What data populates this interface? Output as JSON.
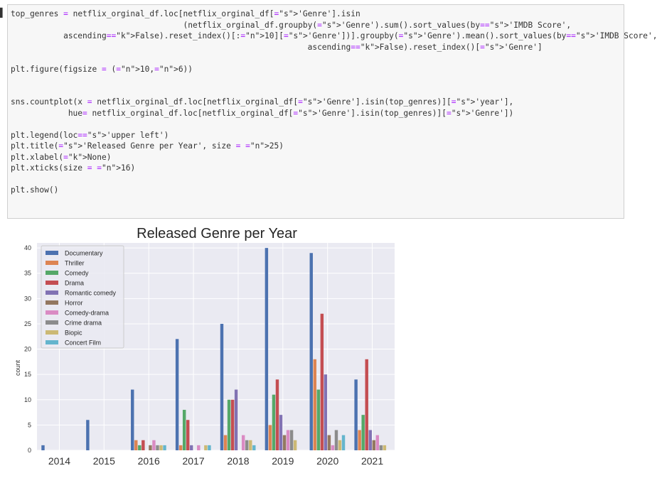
{
  "code_cell": {
    "lines": [
      "top_genres = netflix_orginal_df.loc[netflix_orginal_df['Genre'].isin",
      "                                    (netflix_orginal_df.groupby('Genre').sum().sort_values(by='IMDB Score',",
      "           ascending=False).reset_index()[:10]['Genre'])].groupby('Genre').mean().sort_values(by='IMDB Score',",
      "                                                              ascending=False).reset_index()['Genre']",
      "",
      "plt.figure(figsize = (10,6))",
      "",
      "",
      "sns.countplot(x = netflix_orginal_df.loc[netflix_orginal_df['Genre'].isin(top_genres)]['year'],",
      "            hue= netflix_orginal_df.loc[netflix_orginal_df['Genre'].isin(top_genres)]['Genre'])",
      "",
      "plt.legend(loc='upper left')",
      "plt.title('Released Genre per Year', size = 25)",
      "plt.xlabel(None)",
      "plt.xticks(size = 16)",
      "",
      "plt.show()"
    ]
  },
  "chart_data": {
    "type": "bar",
    "title": "Released Genre per Year",
    "xlabel": "",
    "ylabel": "count",
    "ylim": [
      0,
      41
    ],
    "yticks": [
      0,
      5,
      10,
      15,
      20,
      25,
      30,
      35,
      40
    ],
    "grid": true,
    "legend_position": "upper-left",
    "categories": [
      "2014",
      "2015",
      "2016",
      "2017",
      "2018",
      "2019",
      "2020",
      "2021"
    ],
    "series": [
      {
        "name": "Documentary",
        "color": "#4c72b0",
        "values": [
          1,
          6,
          12,
          22,
          25,
          40,
          39,
          14
        ]
      },
      {
        "name": "Thriller",
        "color": "#dd8452",
        "values": [
          0,
          0,
          2,
          1,
          3,
          5,
          18,
          4
        ]
      },
      {
        "name": "Comedy",
        "color": "#55a868",
        "values": [
          0,
          0,
          1,
          8,
          10,
          11,
          12,
          7
        ]
      },
      {
        "name": "Drama",
        "color": "#c44e52",
        "values": [
          0,
          0,
          2,
          6,
          10,
          14,
          27,
          18
        ]
      },
      {
        "name": "Romantic comedy",
        "color": "#8172b3",
        "values": [
          0,
          0,
          0,
          1,
          12,
          7,
          15,
          4
        ]
      },
      {
        "name": "Horror",
        "color": "#937860",
        "values": [
          0,
          0,
          1,
          0,
          0,
          3,
          3,
          2
        ]
      },
      {
        "name": "Comedy-drama",
        "color": "#da8bc3",
        "values": [
          0,
          0,
          2,
          1,
          3,
          4,
          1,
          3
        ]
      },
      {
        "name": "Crime drama",
        "color": "#8c8c8c",
        "values": [
          0,
          0,
          1,
          0,
          2,
          4,
          4,
          1
        ]
      },
      {
        "name": "Biopic",
        "color": "#ccb974",
        "values": [
          0,
          0,
          1,
          1,
          2,
          2,
          2,
          1
        ]
      },
      {
        "name": "Concert Film",
        "color": "#64b5cd",
        "values": [
          0,
          0,
          1,
          1,
          1,
          0,
          3,
          0
        ]
      }
    ]
  }
}
